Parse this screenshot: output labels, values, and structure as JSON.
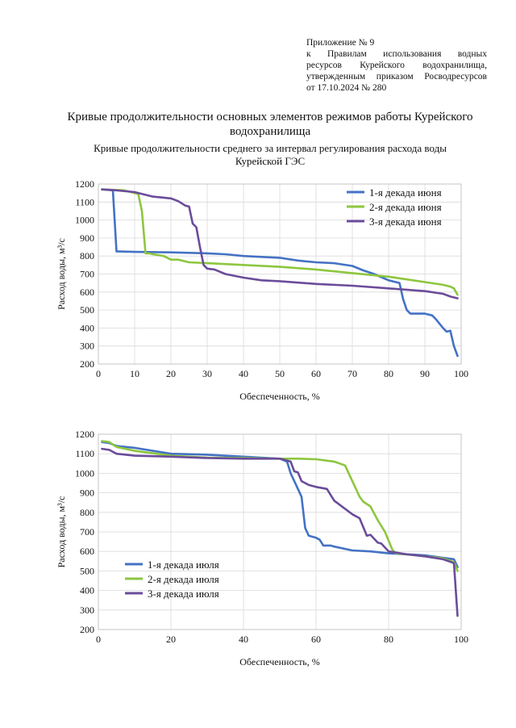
{
  "header": {
    "appendix_lines": [
      "Приложение № 9",
      "к Правилам использования водных",
      "ресурсов Курейского водохранилища,",
      "утвержденным приказом Росводресурсов",
      "от 17.10.2024 № 280"
    ],
    "title_line1": "Кривые продолжительности основных элементов режимов работы Курейского",
    "title_line2": "водохранилища",
    "subtitle_line1": "Кривые продолжительности среднего за интервал регулирования расхода воды",
    "subtitle_line2": "Курейской ГЭС"
  },
  "colors": {
    "blue": "#4472C4",
    "green": "#8DC63F",
    "purple": "#6B4C9A"
  },
  "chart_data": [
    {
      "type": "line",
      "title": "",
      "xlabel": "Обеспеченность, %",
      "ylabel": "Расход воды, м³/с",
      "xlim": [
        0,
        100
      ],
      "ylim": [
        200,
        1200
      ],
      "xticks": [
        0,
        10,
        20,
        30,
        40,
        50,
        60,
        70,
        80,
        90,
        100
      ],
      "yticks": [
        200,
        300,
        400,
        500,
        600,
        700,
        800,
        900,
        1000,
        1100,
        1200
      ],
      "legend_position": "top-right",
      "series": [
        {
          "name": "1-я декада июня",
          "color": "#4472C4",
          "x": [
            1,
            4,
            5,
            6,
            10,
            20,
            30,
            35,
            40,
            50,
            55,
            60,
            65,
            70,
            73,
            76,
            80,
            83,
            84,
            85,
            86,
            90,
            92,
            93,
            95,
            96,
            97,
            98,
            99
          ],
          "y": [
            1170,
            1165,
            825,
            825,
            823,
            820,
            815,
            810,
            800,
            790,
            775,
            765,
            760,
            745,
            720,
            700,
            665,
            650,
            560,
            500,
            480,
            480,
            470,
            450,
            400,
            380,
            385,
            300,
            245
          ]
        },
        {
          "name": "2-я декада июня",
          "color": "#8DC63F",
          "x": [
            1,
            7,
            10,
            11,
            12,
            13,
            14,
            15,
            18,
            20,
            22,
            25,
            30,
            40,
            50,
            60,
            70,
            80,
            85,
            90,
            95,
            97,
            98,
            99
          ],
          "y": [
            1170,
            1165,
            1150,
            1145,
            1050,
            815,
            815,
            810,
            800,
            780,
            780,
            765,
            760,
            750,
            740,
            725,
            705,
            685,
            670,
            655,
            640,
            630,
            620,
            585
          ]
        },
        {
          "name": "3-я декада июня",
          "color": "#6B4C9A",
          "x": [
            1,
            5,
            10,
            15,
            20,
            22,
            24,
            25,
            26,
            27,
            28,
            29,
            30,
            32,
            35,
            40,
            45,
            50,
            60,
            70,
            80,
            90,
            95,
            97,
            99
          ],
          "y": [
            1170,
            1165,
            1155,
            1130,
            1120,
            1105,
            1080,
            1075,
            980,
            960,
            850,
            750,
            730,
            725,
            700,
            680,
            665,
            660,
            645,
            635,
            620,
            605,
            590,
            575,
            565
          ]
        }
      ]
    },
    {
      "type": "line",
      "title": "",
      "xlabel": "Обеспеченность, %",
      "ylabel": "Расход воды, м³/с",
      "xlim": [
        0,
        100
      ],
      "ylim": [
        200,
        1200
      ],
      "xticks": [
        0,
        20,
        40,
        60,
        80,
        100
      ],
      "yticks": [
        200,
        300,
        400,
        500,
        600,
        700,
        800,
        900,
        1000,
        1100,
        1200
      ],
      "legend_position": "bottom-left",
      "series": [
        {
          "name": "1-я декада июля",
          "color": "#4472C4",
          "x": [
            1,
            3,
            5,
            10,
            20,
            30,
            40,
            50,
            52,
            53,
            54,
            56,
            57,
            58,
            60,
            61,
            62,
            64,
            65,
            70,
            75,
            80,
            90,
            98,
            99
          ],
          "y": [
            1160,
            1155,
            1140,
            1130,
            1100,
            1095,
            1085,
            1075,
            1060,
            1000,
            960,
            880,
            720,
            680,
            670,
            660,
            630,
            630,
            625,
            605,
            600,
            590,
            580,
            560,
            520
          ]
        },
        {
          "name": "2-я декада июля",
          "color": "#8DC63F",
          "x": [
            1,
            3,
            5,
            10,
            20,
            30,
            40,
            50,
            55,
            60,
            65,
            68,
            70,
            72,
            73,
            75,
            77,
            79,
            81,
            82,
            85,
            90,
            95,
            98,
            99
          ],
          "y": [
            1165,
            1160,
            1135,
            1115,
            1090,
            1080,
            1078,
            1075,
            1075,
            1072,
            1060,
            1040,
            960,
            880,
            855,
            830,
            760,
            700,
            610,
            590,
            585,
            575,
            565,
            545,
            500
          ]
        },
        {
          "name": "3-я декада июля",
          "color": "#6B4C9A",
          "x": [
            1,
            3,
            5,
            10,
            20,
            30,
            40,
            50,
            53,
            54,
            55,
            56,
            58,
            60,
            63,
            65,
            70,
            72,
            74,
            75,
            77,
            78,
            80,
            85,
            90,
            95,
            98,
            99
          ],
          "y": [
            1125,
            1120,
            1100,
            1090,
            1085,
            1078,
            1075,
            1075,
            1060,
            1010,
            1005,
            960,
            940,
            930,
            920,
            860,
            790,
            770,
            680,
            685,
            645,
            640,
            600,
            585,
            575,
            560,
            540,
            270
          ]
        }
      ]
    }
  ]
}
